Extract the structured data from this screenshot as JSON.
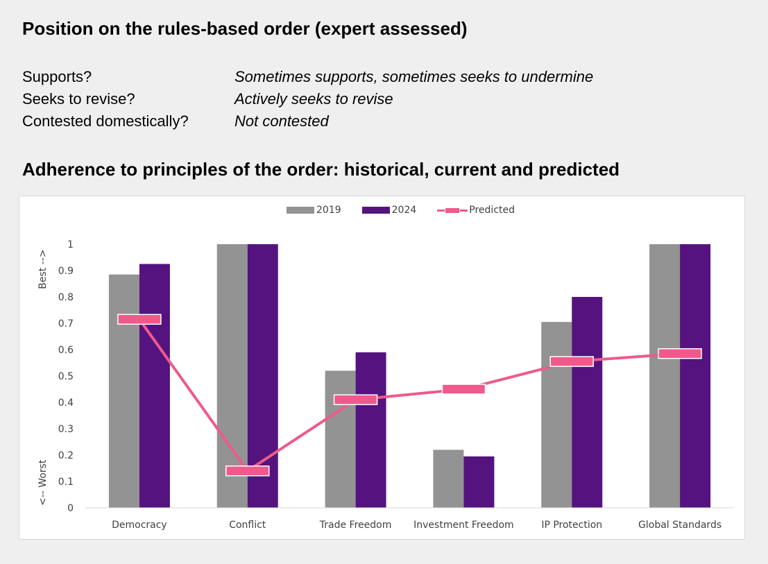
{
  "header": {
    "title": "Position on the rules-based order (expert assessed)",
    "rows": [
      {
        "question": "Supports?",
        "answer": "Sometimes supports, sometimes seeks to undermine"
      },
      {
        "question": "Seeks to revise?",
        "answer": "Actively seeks to revise"
      },
      {
        "question": "Contested domestically?",
        "answer": "Not contested"
      }
    ]
  },
  "chart_title": "Adherence to principles of the order: historical, current and predicted",
  "chart_data": {
    "type": "bar",
    "categories": [
      "Democracy",
      "Conflict",
      "Trade Freedom",
      "Investment Freedom",
      "IP Protection",
      "Global Standards"
    ],
    "series": [
      {
        "name": "2019",
        "type": "bar",
        "color": "#939393",
        "values": [
          0.885,
          1.0,
          0.52,
          0.22,
          0.705,
          1.0
        ]
      },
      {
        "name": "2024",
        "type": "bar",
        "color": "#55137f",
        "values": [
          0.925,
          1.0,
          0.59,
          0.195,
          0.8,
          1.0
        ]
      },
      {
        "name": "Predicted",
        "type": "line",
        "color": "#ee5a8b",
        "values": [
          0.715,
          0.14,
          0.41,
          0.45,
          0.555,
          0.585
        ]
      }
    ],
    "ylim": [
      0,
      1
    ],
    "yticks": [
      "0",
      "0.1",
      "0.2",
      "0.3",
      "0.4",
      "0.5",
      "0.6",
      "0.7",
      "0.8",
      "0.9",
      "1"
    ],
    "ylabel_top": "Best -->",
    "ylabel_bottom": "<-- Worst",
    "legend_position": "top-center",
    "grid": false
  }
}
